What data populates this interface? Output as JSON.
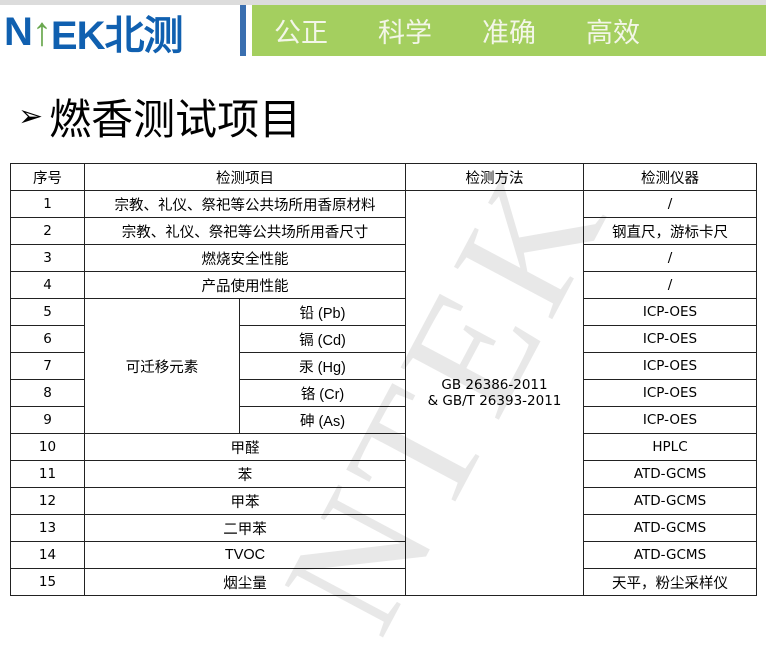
{
  "header": {
    "logo": "NTEK北测",
    "slogans": [
      "公正",
      "科学",
      "准确",
      "高效"
    ]
  },
  "title": "燃香测试项目",
  "watermark": "NTEK",
  "table": {
    "headers": [
      "序号",
      "检测项目",
      "检测方法",
      "检测仪器"
    ],
    "method": "GB 26386-2011\n& GB/T 26393-2011",
    "method_line1": "GB 26386-2011",
    "method_line2": "& GB/T 26393-2011",
    "group_label": "可迁移元素",
    "rows": [
      {
        "no": "1",
        "item": "宗教、礼仪、祭祀等公共场所用香原材料",
        "instrument": "/"
      },
      {
        "no": "2",
        "item": "宗教、礼仪、祭祀等公共场所用香尺寸",
        "instrument": "钢直尺，游标卡尺"
      },
      {
        "no": "3",
        "item": "燃烧安全性能",
        "instrument": "/"
      },
      {
        "no": "4",
        "item": "产品使用性能",
        "instrument": "/"
      },
      {
        "no": "5",
        "item": "铅 (Pb)",
        "instrument": "ICP-OES"
      },
      {
        "no": "6",
        "item": "镉 (Cd)",
        "instrument": "ICP-OES"
      },
      {
        "no": "7",
        "item": "汞 (Hg)",
        "instrument": "ICP-OES"
      },
      {
        "no": "8",
        "item": "铬 (Cr)",
        "instrument": "ICP-OES"
      },
      {
        "no": "9",
        "item": "砷 (As)",
        "instrument": "ICP-OES"
      },
      {
        "no": "10",
        "item": "甲醛",
        "instrument": "HPLC"
      },
      {
        "no": "11",
        "item": "苯",
        "instrument": "ATD-GCMS"
      },
      {
        "no": "12",
        "item": "甲苯",
        "instrument": "ATD-GCMS"
      },
      {
        "no": "13",
        "item": "二甲苯",
        "instrument": "ATD-GCMS"
      },
      {
        "no": "14",
        "item": "TVOC",
        "instrument": "ATD-GCMS"
      },
      {
        "no": "15",
        "item": "烟尘量",
        "instrument": "天平，粉尘采样仪"
      }
    ]
  }
}
